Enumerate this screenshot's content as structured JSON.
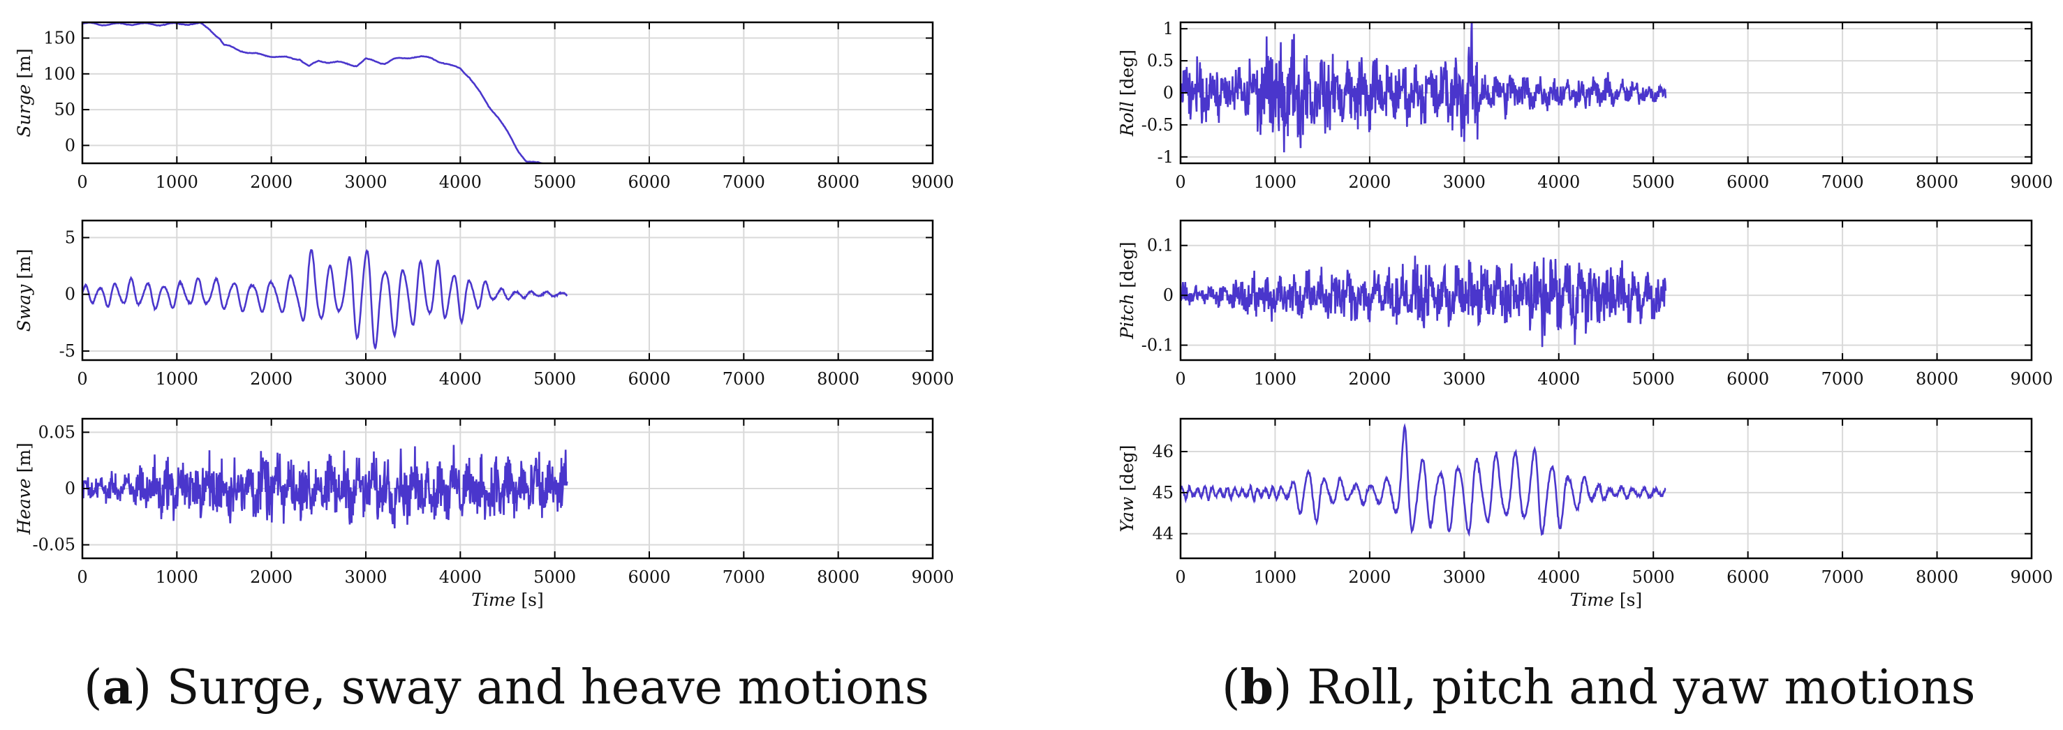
{
  "colors": {
    "line": "#4a36cc",
    "grid": "#d9d9d9",
    "axis": "#000000"
  },
  "captions": [
    {
      "letter": "a",
      "text": "Surge, sway and heave motions"
    },
    {
      "letter": "b",
      "text": "Roll, pitch and yaw motions"
    }
  ],
  "chart_data": [
    {
      "type": "line",
      "panel": "a",
      "ylabel_var": "Surge",
      "ylabel_unit": "[m]",
      "xlabel": "",
      "xlim": [
        0,
        9000
      ],
      "ylim": [
        -25,
        172
      ],
      "xticks": [
        0,
        1000,
        2000,
        3000,
        4000,
        5000,
        6000,
        7000,
        8000,
        9000
      ],
      "yticks": [
        0,
        50,
        100,
        150
      ],
      "grid": true,
      "series": [
        {
          "style": "smooth-step",
          "noise": 1.5,
          "x": [
            0,
            100,
            300,
            500,
            800,
            1100,
            1250,
            1350,
            1450,
            1500,
            1600,
            1800,
            2000,
            2100,
            2300,
            2400,
            2500,
            2700,
            2900,
            3000,
            3200,
            3300,
            3500,
            3700,
            3900,
            4000,
            4100,
            4200,
            4300,
            4400,
            4500,
            4600,
            4700,
            4800,
            5000
          ],
          "y": [
            170,
            170,
            169,
            170,
            169,
            170,
            170,
            162,
            150,
            140,
            136,
            128,
            125,
            123,
            121,
            110,
            118,
            116,
            112,
            120,
            115,
            120,
            124,
            122,
            111,
            108,
            95,
            75,
            55,
            40,
            18,
            -5,
            -22,
            -25,
            -26
          ]
        }
      ]
    },
    {
      "type": "line",
      "panel": "a",
      "ylabel_var": "Sway",
      "ylabel_unit": "[m]",
      "xlabel": "",
      "xlim": [
        0,
        9000
      ],
      "ylim": [
        -5.8,
        6.5
      ],
      "xticks": [
        0,
        1000,
        2000,
        3000,
        4000,
        5000,
        6000,
        7000,
        8000,
        9000
      ],
      "yticks": [
        -5,
        0,
        5
      ],
      "grid": true,
      "series": [
        {
          "style": "wave",
          "tmax": 5130,
          "noise": 0.05,
          "x": [
            0,
            500,
            1000,
            1500,
            1800,
            2100,
            2300,
            2450,
            2600,
            2800,
            2950,
            3050,
            3200,
            3400,
            3600,
            3800,
            4000,
            4200,
            4400,
            4700,
            5130
          ],
          "amp": [
            0.8,
            1.4,
            1.3,
            1.6,
            1.5,
            1.8,
            2.5,
            5.0,
            2.5,
            3.0,
            6.2,
            5.5,
            3.8,
            3.5,
            3.2,
            3.0,
            2.5,
            1.5,
            0.6,
            0.3,
            0.2
          ],
          "period": [
            150,
            170,
            180,
            190,
            200,
            210,
            220,
            200,
            190,
            200,
            180,
            200,
            200,
            190,
            180,
            170,
            170,
            170,
            160,
            160,
            160
          ]
        }
      ]
    },
    {
      "type": "line",
      "panel": "a",
      "ylabel_var": "Heave",
      "ylabel_unit": "[m]",
      "xlabel_var": "Time",
      "xlabel_unit": "[s]",
      "xlim": [
        0,
        9000
      ],
      "ylim": [
        -0.062,
        0.062
      ],
      "xticks": [
        0,
        1000,
        2000,
        3000,
        4000,
        5000,
        6000,
        7000,
        8000,
        9000
      ],
      "yticks": [
        -0.05,
        0,
        0.05
      ],
      "grid": true,
      "series": [
        {
          "style": "noise",
          "tmax": 5130,
          "step": 5,
          "x": [
            0,
            500,
            600,
            1500,
            2000,
            3000,
            4000,
            4500,
            5130
          ],
          "amp": [
            0.012,
            0.013,
            0.025,
            0.03,
            0.03,
            0.03,
            0.03,
            0.035,
            0.028
          ]
        }
      ]
    },
    {
      "type": "line",
      "panel": "b",
      "ylabel_var": "Roll",
      "ylabel_unit": "[deg]",
      "xlabel": "",
      "xlim": [
        0,
        9000
      ],
      "ylim": [
        -1.1,
        1.1
      ],
      "xticks": [
        0,
        1000,
        2000,
        3000,
        4000,
        5000,
        6000,
        7000,
        8000,
        9000
      ],
      "yticks": [
        -1,
        -0.5,
        0,
        0.5,
        1
      ],
      "grid": true,
      "series": [
        {
          "style": "noise",
          "tmax": 5130,
          "step": 5,
          "x": [
            0,
            300,
            500,
            800,
            1000,
            1200,
            1500,
            2000,
            2500,
            2800,
            3000,
            3100,
            3200,
            3500,
            4000,
            4500,
            5000,
            5130
          ],
          "amp": [
            0.45,
            0.5,
            0.35,
            0.7,
            0.9,
            0.85,
            0.6,
            0.6,
            0.45,
            0.55,
            0.8,
            0.95,
            0.35,
            0.35,
            0.25,
            0.25,
            0.15,
            0.12
          ]
        }
      ]
    },
    {
      "type": "line",
      "panel": "b",
      "ylabel_var": "Pitch",
      "ylabel_unit": "[deg]",
      "xlabel": "",
      "xlim": [
        0,
        9000
      ],
      "ylim": [
        -0.13,
        0.15
      ],
      "xticks": [
        0,
        1000,
        2000,
        3000,
        4000,
        5000,
        6000,
        7000,
        8000,
        9000
      ],
      "yticks": [
        -0.1,
        0,
        0.1
      ],
      "grid": true,
      "series": [
        {
          "style": "noise",
          "tmax": 5130,
          "step": 5,
          "x": [
            0,
            500,
            600,
            1500,
            2500,
            3000,
            3700,
            3800,
            4500,
            5130
          ],
          "amp": [
            0.02,
            0.025,
            0.045,
            0.055,
            0.06,
            0.065,
            0.07,
            0.1,
            0.065,
            0.06
          ]
        }
      ]
    },
    {
      "type": "line",
      "panel": "b",
      "ylabel_var": "Yaw",
      "ylabel_unit": "[deg]",
      "xlabel_var": "Time",
      "xlabel_unit": "[s]",
      "xlim": [
        0,
        9000
      ],
      "ylim": [
        43.4,
        46.8
      ],
      "xticks": [
        0,
        1000,
        2000,
        3000,
        4000,
        5000,
        6000,
        7000,
        8000,
        9000
      ],
      "yticks": [
        44,
        45,
        46
      ],
      "grid": true,
      "series": [
        {
          "style": "wave",
          "tmax": 5130,
          "noise": 0.04,
          "offset": 45,
          "x": [
            0,
            1000,
            1200,
            1350,
            1500,
            1800,
            2000,
            2200,
            2380,
            2500,
            2700,
            3000,
            3300,
            3600,
            3800,
            4000,
            4200,
            4500,
            5130
          ],
          "amp": [
            0.15,
            0.15,
            0.3,
            1.0,
            0.5,
            0.25,
            0.3,
            0.4,
            1.7,
            1.2,
            0.8,
            1.1,
            1.0,
            1.0,
            1.3,
            0.9,
            0.5,
            0.15,
            0.12
          ],
          "period": [
            80,
            80,
            150,
            180,
            170,
            160,
            160,
            180,
            190,
            190,
            190,
            200,
            200,
            200,
            190,
            180,
            170,
            120,
            120
          ]
        }
      ]
    }
  ]
}
